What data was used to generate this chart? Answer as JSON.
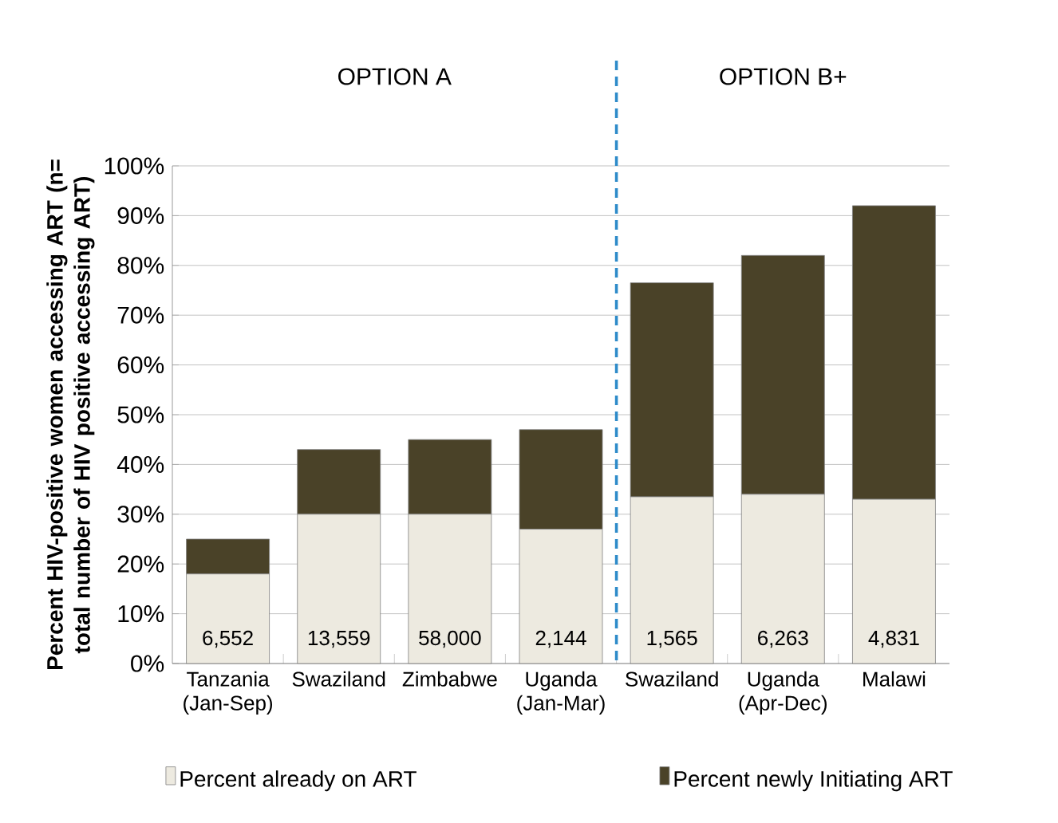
{
  "chart_data": {
    "type": "bar",
    "stacked": true,
    "ylabel": "Percent HIV-positive women accessing ART (n= total number of HIV positive accessing ART)",
    "categories": [
      "Tanzania (Jan-Sep)",
      "Swaziland",
      "Zimbabwe",
      "Uganda (Jan-Mar)",
      "Swaziland",
      "Uganda (Apr-Dec)",
      "Malawi"
    ],
    "series": [
      {
        "name": "Percent already on ART",
        "color": "#edeae0",
        "values": [
          18,
          30,
          30,
          27,
          33.5,
          34,
          33
        ]
      },
      {
        "name": "Percent newly Initiating ART",
        "color": "#4a4228",
        "values": [
          7,
          13,
          15,
          20,
          43,
          48,
          59
        ]
      }
    ],
    "ylim": [
      0,
      100
    ],
    "yticks": [
      {
        "value": 0,
        "label": "0%"
      },
      {
        "value": 10,
        "label": "10%"
      },
      {
        "value": 20,
        "label": "20%"
      },
      {
        "value": 30,
        "label": "30%"
      },
      {
        "value": 40,
        "label": "40%"
      },
      {
        "value": 50,
        "label": "50%"
      },
      {
        "value": 60,
        "label": "60%"
      },
      {
        "value": 70,
        "label": "70%"
      },
      {
        "value": 80,
        "label": "80%"
      },
      {
        "value": 90,
        "label": "90%"
      },
      {
        "value": 100,
        "label": "100%"
      }
    ],
    "grid": "y",
    "legend": "bottom",
    "annotations": [
      "6,552",
      "13,559",
      "58,000",
      "2,144",
      "1,565",
      "6,263",
      "4,831",
      "OPTION A",
      "OPTION B+"
    ]
  }
}
